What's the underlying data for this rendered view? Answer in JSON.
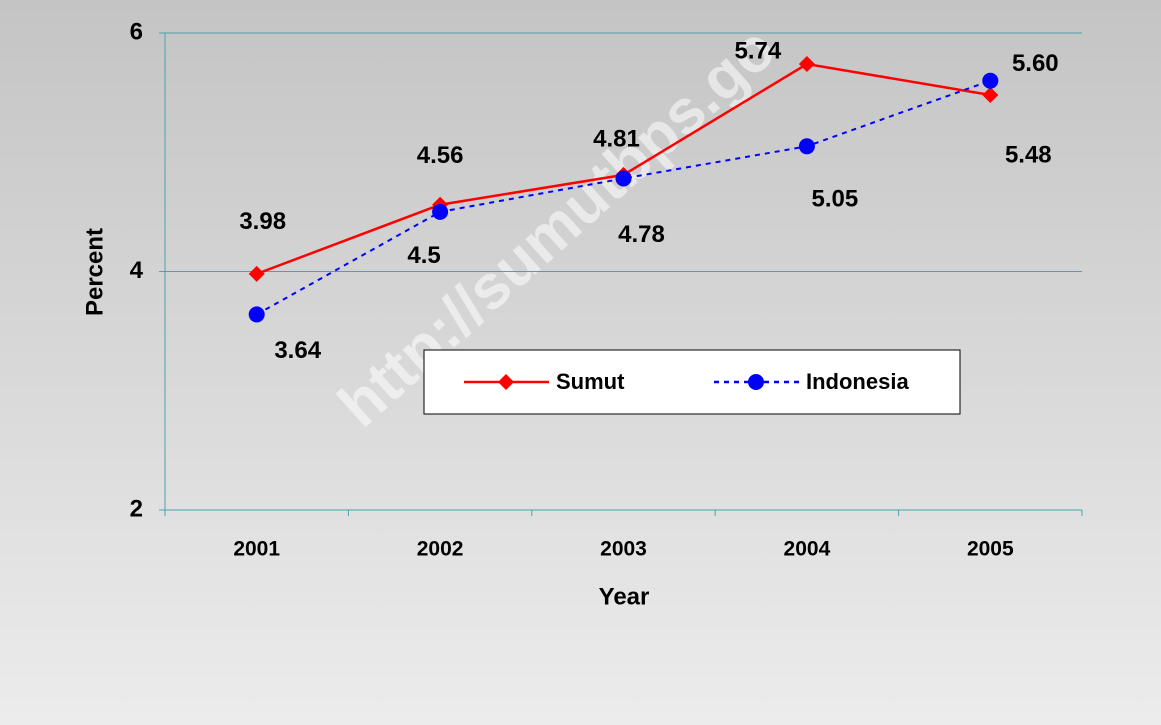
{
  "chart_data": {
    "type": "line",
    "watermark": "http://sumutbps.go",
    "xlabel": "Year",
    "ylabel": "Percent",
    "categories": [
      "2001",
      "2002",
      "2003",
      "2004",
      "2005"
    ],
    "series": [
      {
        "name": "Sumut",
        "color": "#ff0000",
        "marker": "diamond",
        "dash": "solid",
        "values": [
          3.98,
          4.56,
          4.81,
          5.74,
          5.48
        ]
      },
      {
        "name": "Indonesia",
        "color": "#0000ff",
        "marker": "circle",
        "dash": "dashed",
        "values": [
          3.64,
          4.5,
          4.78,
          5.05,
          5.6
        ],
        "value_labels": [
          "3.64",
          "4.5",
          "4.78",
          "5.05",
          "5.60"
        ]
      }
    ],
    "ylim": [
      2,
      6
    ],
    "yticks": [
      2,
      4,
      6
    ],
    "grid": true
  }
}
